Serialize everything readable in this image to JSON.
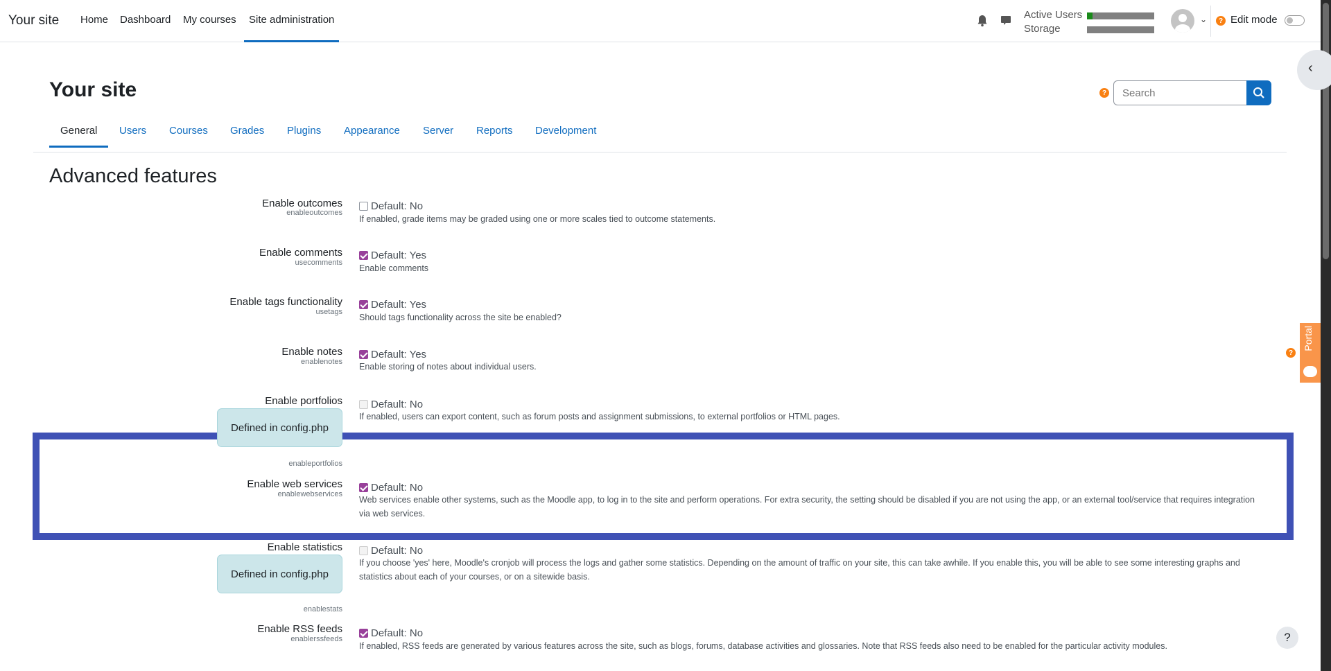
{
  "header": {
    "site_name": "Your site",
    "nav": [
      "Home",
      "Dashboard",
      "My courses",
      "Site administration"
    ],
    "active_users_label": "Active Users",
    "storage_label": "Storage",
    "active_users_fraction": 0.08,
    "storage_fraction": 0.0,
    "edit_mode_label": "Edit mode",
    "edit_mode_on": false
  },
  "page": {
    "title": "Your site",
    "search_placeholder": "Search",
    "tabs": [
      "General",
      "Users",
      "Courses",
      "Grades",
      "Plugins",
      "Appearance",
      "Server",
      "Reports",
      "Development"
    ],
    "section_title": "Advanced features"
  },
  "settings": [
    {
      "label": "Enable outcomes",
      "key": "enableoutcomes",
      "checked": false,
      "default": "Default: No",
      "desc": "If enabled, grade items may be graded using one or more scales tied to outcome statements."
    },
    {
      "label": "Enable comments",
      "key": "usecomments",
      "checked": true,
      "default": "Default: Yes",
      "desc": "Enable comments"
    },
    {
      "label": "Enable tags functionality",
      "key": "usetags",
      "checked": true,
      "default": "Default: Yes",
      "desc": "Should tags functionality across the site be enabled?"
    },
    {
      "label": "Enable notes",
      "key": "enablenotes",
      "checked": true,
      "default": "Default: Yes",
      "desc": "Enable storing of notes about individual users."
    },
    {
      "label": "Enable portfolios",
      "key": "enableportfolios",
      "checked": false,
      "disabled": true,
      "default": "Default: No",
      "config": "Defined in config.php",
      "desc": "If enabled, users can export content, such as forum posts and assignment submissions, to external portfolios or HTML pages."
    },
    {
      "label": "Enable web services",
      "key": "enablewebservices",
      "checked": true,
      "default": "Default: No",
      "desc": "Web services enable other systems, such as the Moodle app, to log in to the site and perform operations. For extra security, the setting should be disabled if you are not using the app, or an external tool/service that requires integration via web services."
    },
    {
      "label": "Enable statistics",
      "key": "enablestats",
      "checked": false,
      "disabled": true,
      "default": "Default: No",
      "config": "Defined in config.php",
      "desc": "If you choose 'yes' here, Moodle's cronjob will process the logs and gather some statistics. Depending on the amount of traffic on your site, this can take awhile. If you enable this, you will be able to see some interesting graphs and statistics about each of your courses, or on a sitewide basis."
    },
    {
      "label": "Enable RSS feeds",
      "key": "enablerssfeeds",
      "checked": true,
      "default": "Default: No",
      "desc": "If enabled, RSS feeds are generated by various features across the site, such as blogs, forums, database activities and glossaries. Note that RSS feeds also need to be enabled for the particular activity modules."
    }
  ],
  "portal_label": "Portal",
  "help_label": "?",
  "colors": {
    "highlight": "#3f51b5",
    "accent": "#0f6cbf",
    "checkbox": "#98409a",
    "portal": "#f98012"
  }
}
